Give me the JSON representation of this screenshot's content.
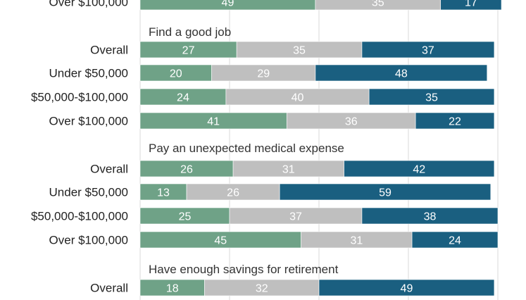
{
  "chart_data": {
    "type": "bar",
    "orientation": "horizontal",
    "stacked": true,
    "xlim": [
      0,
      100
    ],
    "grid": true,
    "legend": "none",
    "series_colors": [
      "#6fa287",
      "#bfbfbf",
      "#1a5f80"
    ],
    "groups": [
      {
        "title": "",
        "rows": [
          {
            "label": "Over $100,000",
            "values": [
              49,
              35,
              17
            ]
          }
        ]
      },
      {
        "title": "Find a good job",
        "rows": [
          {
            "label": "Overall",
            "values": [
              27,
              35,
              37
            ]
          },
          {
            "label": "Under $50,000",
            "values": [
              20,
              29,
              48
            ]
          },
          {
            "label": "$50,000-$100,000",
            "values": [
              24,
              40,
              35
            ]
          },
          {
            "label": "Over $100,000",
            "values": [
              41,
              36,
              22
            ]
          }
        ]
      },
      {
        "title": "Pay an unexpected medical expense",
        "rows": [
          {
            "label": "Overall",
            "values": [
              26,
              31,
              42
            ]
          },
          {
            "label": "Under $50,000",
            "values": [
              13,
              26,
              59
            ]
          },
          {
            "label": "$50,000-$100,000",
            "values": [
              25,
              37,
              38
            ]
          },
          {
            "label": "Over $100,000",
            "values": [
              45,
              31,
              24
            ]
          }
        ]
      },
      {
        "title": "Have enough savings for retirement",
        "rows": [
          {
            "label": "Overall",
            "values": [
              18,
              32,
              49
            ]
          }
        ]
      }
    ]
  }
}
